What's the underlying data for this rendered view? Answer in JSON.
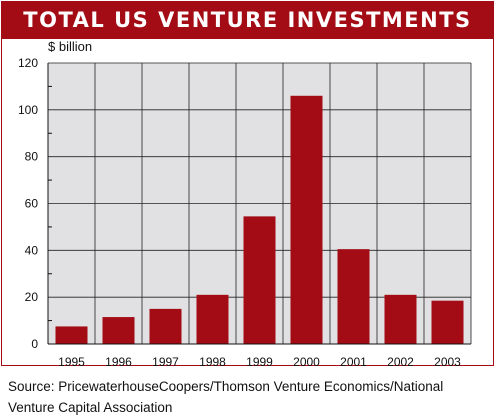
{
  "chart_data": {
    "type": "bar",
    "title": "TOTAL US VENTURE INVESTMENTS",
    "ylabel": "$ billion",
    "xlabel": "",
    "categories": [
      "1995",
      "1996",
      "1997",
      "1998",
      "1999",
      "2000",
      "2001",
      "2002",
      "2003"
    ],
    "values": [
      7.5,
      11.5,
      15,
      21,
      54.5,
      106,
      40.5,
      21,
      18.5
    ],
    "ylim": [
      0,
      120
    ],
    "yticks": [
      0,
      20,
      40,
      60,
      80,
      100,
      120
    ],
    "grid": true,
    "bar_color": "#a30c14",
    "plot_background": "#e1e1e3"
  },
  "source": "Source:  PricewaterhouseCoopers/Thomson Venture Economics/National Venture Capital Association"
}
